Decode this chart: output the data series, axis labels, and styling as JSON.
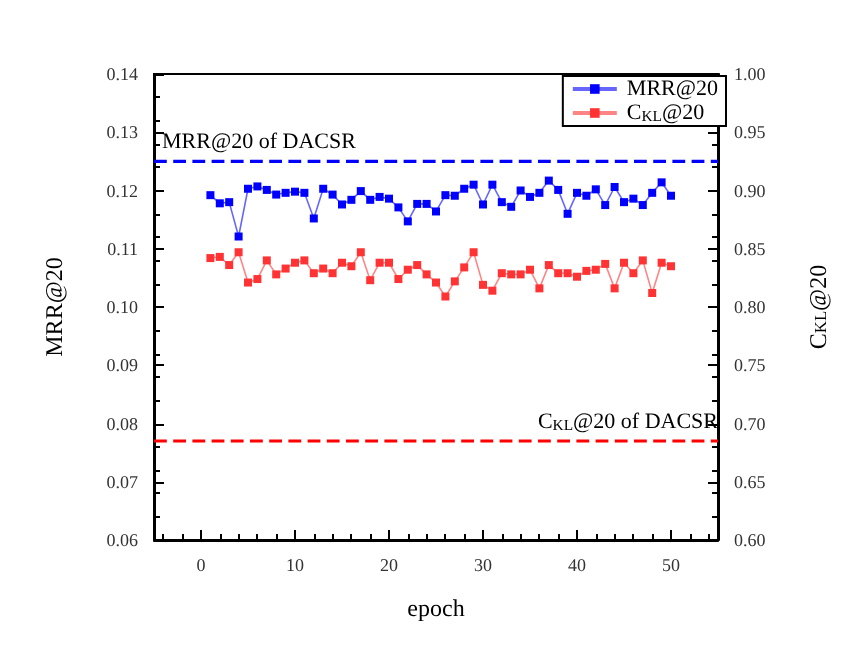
{
  "chart_data": {
    "type": "line",
    "xlabel": "epoch",
    "ylabel": "MRR@20",
    "y2label": "C$_{KL}$@20",
    "x": [
      1,
      2,
      3,
      4,
      5,
      6,
      7,
      8,
      9,
      10,
      11,
      12,
      13,
      14,
      15,
      16,
      17,
      18,
      19,
      20,
      21,
      22,
      23,
      24,
      25,
      26,
      27,
      28,
      29,
      30,
      31,
      32,
      33,
      34,
      35,
      36,
      37,
      38,
      39,
      40,
      41,
      42,
      43,
      44,
      45,
      46,
      47,
      48,
      49,
      50
    ],
    "series": [
      {
        "name": "MRR@20",
        "color": "#0000ff",
        "values": [
          0.1192,
          0.1178,
          0.118,
          0.1121,
          0.1203,
          0.1207,
          0.1201,
          0.1193,
          0.1196,
          0.1198,
          0.1196,
          0.1152,
          0.1203,
          0.1193,
          0.1176,
          0.1184,
          0.1199,
          0.1184,
          0.1189,
          0.1186,
          0.1171,
          0.1147,
          0.1177,
          0.1177,
          0.1164,
          0.1192,
          0.1191,
          0.1203,
          0.121,
          0.1176,
          0.121,
          0.118,
          0.1172,
          0.12,
          0.1189,
          0.1196,
          0.1217,
          0.1201,
          0.116,
          0.1196,
          0.1191,
          0.1202,
          0.1175,
          0.1206,
          0.118,
          0.1186,
          0.1175,
          0.1196,
          0.1214,
          0.1191
        ]
      },
      {
        "name": "C$_{KL}$@20",
        "color": "#ff3333",
        "axis": "y2",
        "values": [
          0.842,
          0.843,
          0.836,
          0.847,
          0.821,
          0.824,
          0.84,
          0.828,
          0.833,
          0.838,
          0.84,
          0.829,
          0.833,
          0.829,
          0.838,
          0.835,
          0.847,
          0.823,
          0.838,
          0.838,
          0.824,
          0.832,
          0.836,
          0.828,
          0.821,
          0.809,
          0.822,
          0.834,
          0.847,
          0.819,
          0.814,
          0.829,
          0.828,
          0.828,
          0.832,
          0.816,
          0.836,
          0.829,
          0.829,
          0.826,
          0.831,
          0.832,
          0.837,
          0.816,
          0.838,
          0.829,
          0.84,
          0.812,
          0.838,
          0.835
        ]
      }
    ],
    "xlim": [
      -5,
      55
    ],
    "xticks": [
      0,
      10,
      20,
      30,
      40,
      50
    ],
    "ylim": [
      0.06,
      0.14
    ],
    "yticks": [
      {
        "value": 0.06,
        "label": "0.06"
      },
      {
        "value": 0.07,
        "label": "0.07"
      },
      {
        "value": 0.08,
        "label": "0.08"
      },
      {
        "value": 0.09,
        "label": "0.09"
      },
      {
        "value": 0.1,
        "label": "0.10"
      },
      {
        "value": 0.11,
        "label": "0.11"
      },
      {
        "value": 0.12,
        "label": "0.12"
      },
      {
        "value": 0.13,
        "label": "0.13"
      },
      {
        "value": 0.14,
        "label": "0.14"
      }
    ],
    "y2lim": [
      0.6,
      1.0
    ],
    "y2ticks": [
      {
        "value": 0.6,
        "label": "0.60"
      },
      {
        "value": 0.65,
        "label": "0.65"
      },
      {
        "value": 0.7,
        "label": "0.70"
      },
      {
        "value": 0.75,
        "label": "0.75"
      },
      {
        "value": 0.8,
        "label": "0.80"
      },
      {
        "value": 0.85,
        "label": "0.85"
      },
      {
        "value": 0.9,
        "label": "0.90"
      },
      {
        "value": 0.95,
        "label": "0.95"
      },
      {
        "value": 1.0,
        "label": "1.00"
      }
    ],
    "ref_lines": [
      {
        "axis": "y",
        "value": 0.125,
        "label": "MRR@20 of DACSR",
        "color": "#0000ff",
        "line_style": "dashed"
      },
      {
        "axis": "y2",
        "value": 0.685,
        "label": "C$_{KL}$@20 of DACSR",
        "color": "#ff0000",
        "line_style": "dashed"
      }
    ],
    "marker": "square",
    "line_style": "solid",
    "grid": false,
    "legend": "top right"
  }
}
